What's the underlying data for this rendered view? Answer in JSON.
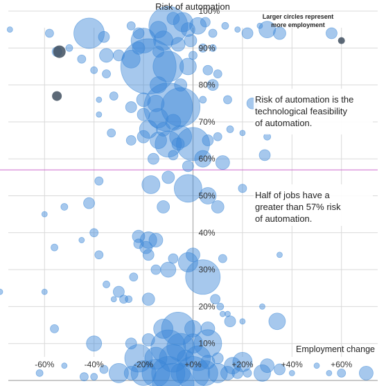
{
  "chart_data": {
    "type": "scatter",
    "title": "Risk of automation",
    "xlabel": "Employment change",
    "ylabel": "",
    "xlim": [
      -78,
      78
    ],
    "ylim": [
      -1.5,
      103
    ],
    "xticks": [
      -60,
      -40,
      -20,
      0,
      20,
      40,
      60
    ],
    "xtick_labels": [
      "-60%",
      "-40%",
      "-20%",
      "+0%",
      "+20%",
      "+40%",
      "+60%"
    ],
    "yticks": [
      10,
      20,
      30,
      40,
      50,
      60,
      70,
      80,
      90,
      100
    ],
    "ytick_labels": [
      "10%",
      "20%",
      "30%",
      "40%",
      "50%",
      "60%",
      "70%",
      "80%",
      "90%",
      "100%"
    ],
    "grid": true,
    "size_legend": {
      "line1": "Larger circles represent",
      "line2": "more employment"
    },
    "annotations": [
      {
        "lines": [
          "Risk of automation is the",
          "technological feasibility",
          "of automation."
        ],
        "color": "#111111"
      },
      {
        "lines": [
          "Half of jobs have a",
          "greater than 57% risk",
          "of automation."
        ],
        "color": "#cc55bb"
      }
    ],
    "reference_line": {
      "y": 57,
      "color": "#cc66cc"
    },
    "colors": {
      "bubble": "#3a86d6",
      "highlight": "#3f4f5f",
      "legend": "#2f7fd6",
      "annotation_text": "#111111",
      "annotation_highlight": "#cc55bb"
    },
    "bubble_alpha": 0.45,
    "highlighted": [
      [
        -54,
        89,
        9
      ],
      [
        -55,
        77,
        7
      ],
      [
        60,
        92,
        5
      ]
    ],
    "points": [
      [
        -74,
        95,
        4
      ],
      [
        -58,
        94,
        6
      ],
      [
        -42,
        94,
        22
      ],
      [
        -36,
        93,
        8
      ],
      [
        -25,
        96,
        6
      ],
      [
        -22,
        94,
        8
      ],
      [
        -14,
        95,
        12
      ],
      [
        -10,
        96,
        28
      ],
      [
        -8,
        98,
        9
      ],
      [
        -4,
        97,
        14
      ],
      [
        -2,
        95,
        10
      ],
      [
        2,
        96,
        12
      ],
      [
        5,
        97,
        7
      ],
      [
        8,
        94,
        6
      ],
      [
        13,
        96,
        5
      ],
      [
        18,
        95,
        4
      ],
      [
        22,
        94,
        8
      ],
      [
        27,
        96,
        4
      ],
      [
        30,
        95,
        12
      ],
      [
        35,
        94,
        9
      ],
      [
        56,
        94,
        8
      ],
      [
        -20,
        92,
        18
      ],
      [
        -12,
        92,
        14
      ],
      [
        -6,
        91,
        10
      ],
      [
        -1,
        92,
        9
      ],
      [
        4,
        90,
        6
      ],
      [
        8,
        90,
        5
      ],
      [
        -30,
        88,
        8
      ],
      [
        -22,
        90,
        9
      ],
      [
        -14,
        89,
        8
      ],
      [
        0,
        88,
        6
      ],
      [
        -55,
        89,
        7
      ],
      [
        -50,
        90,
        5
      ],
      [
        -35,
        88,
        10
      ],
      [
        -25,
        87,
        13
      ],
      [
        -45,
        87,
        6
      ],
      [
        -18,
        85,
        40
      ],
      [
        -10,
        85,
        22
      ],
      [
        -2,
        85,
        12
      ],
      [
        6,
        84,
        7
      ],
      [
        -40,
        84,
        5
      ],
      [
        -35,
        83,
        6
      ],
      [
        10,
        83,
        6
      ],
      [
        -14,
        80,
        12
      ],
      [
        -5,
        80,
        9
      ],
      [
        8,
        80,
        8
      ],
      [
        -38,
        76,
        4
      ],
      [
        -32,
        77,
        6
      ],
      [
        -20,
        76,
        10
      ],
      [
        -15,
        75,
        12
      ],
      [
        -25,
        74,
        8
      ],
      [
        -10,
        74,
        35
      ],
      [
        -5,
        74,
        28
      ],
      [
        4,
        76,
        5
      ],
      [
        14,
        76,
        6
      ],
      [
        24,
        75,
        8
      ],
      [
        -38,
        72,
        4
      ],
      [
        -20,
        72,
        9
      ],
      [
        -14,
        71,
        14
      ],
      [
        -8,
        70,
        11
      ],
      [
        -18,
        68,
        13
      ],
      [
        -12,
        68,
        10
      ],
      [
        -5,
        66,
        16
      ],
      [
        -33,
        67,
        6
      ],
      [
        -25,
        65,
        7
      ],
      [
        -20,
        66,
        9
      ],
      [
        -14,
        65,
        12
      ],
      [
        -10,
        64,
        19
      ],
      [
        -6,
        64,
        9
      ],
      [
        0,
        64,
        24
      ],
      [
        6,
        65,
        8
      ],
      [
        10,
        66,
        6
      ],
      [
        15,
        68,
        5
      ],
      [
        20,
        67,
        4
      ],
      [
        30,
        66,
        5
      ],
      [
        -16,
        60,
        8
      ],
      [
        -8,
        61,
        7
      ],
      [
        4,
        60,
        12
      ],
      [
        12,
        59,
        10
      ],
      [
        -2,
        58,
        8
      ],
      [
        29,
        61,
        8
      ],
      [
        -17,
        53,
        13
      ],
      [
        -38,
        54,
        6
      ],
      [
        -10,
        55,
        9
      ],
      [
        -2,
        52,
        20
      ],
      [
        6,
        50,
        12
      ],
      [
        20,
        52,
        6
      ],
      [
        -42,
        48,
        8
      ],
      [
        -52,
        47,
        5
      ],
      [
        -12,
        47,
        9
      ],
      [
        10,
        47,
        9
      ],
      [
        -60,
        45,
        4
      ],
      [
        -40,
        40,
        6
      ],
      [
        -22,
        39,
        9
      ],
      [
        -18,
        38,
        12
      ],
      [
        -19,
        36,
        9
      ],
      [
        -15,
        38,
        10
      ],
      [
        -22,
        37,
        7
      ],
      [
        -45,
        38,
        4
      ],
      [
        -56,
        36,
        5
      ],
      [
        -18,
        34,
        8
      ],
      [
        -38,
        34,
        6
      ],
      [
        0,
        34,
        10
      ],
      [
        -8,
        33,
        7
      ],
      [
        -2,
        32,
        14
      ],
      [
        -10,
        30,
        11
      ],
      [
        4,
        28,
        25
      ],
      [
        12,
        33,
        6
      ],
      [
        35,
        34,
        4
      ],
      [
        -15,
        30,
        7
      ],
      [
        -24,
        28,
        6
      ],
      [
        -35,
        26,
        5
      ],
      [
        -30,
        24,
        8
      ],
      [
        -28,
        22,
        6
      ],
      [
        -26,
        22,
        5
      ],
      [
        -60,
        24,
        4
      ],
      [
        -78,
        24,
        4
      ],
      [
        -18,
        22,
        9
      ],
      [
        -32,
        22,
        4
      ],
      [
        9,
        22,
        7
      ],
      [
        11,
        20,
        5
      ],
      [
        14,
        18,
        4
      ],
      [
        12,
        18,
        4
      ],
      [
        15,
        16,
        8
      ],
      [
        20,
        16,
        4
      ],
      [
        28,
        20,
        4
      ],
      [
        34,
        16,
        12
      ],
      [
        -56,
        14,
        6
      ],
      [
        -12,
        14,
        14
      ],
      [
        -6,
        14,
        24
      ],
      [
        0,
        14,
        12
      ],
      [
        6,
        14,
        10
      ],
      [
        -40,
        10,
        11
      ],
      [
        -25,
        10,
        8
      ],
      [
        -18,
        11,
        9
      ],
      [
        -10,
        9,
        25
      ],
      [
        -5,
        9,
        20
      ],
      [
        0,
        10,
        14
      ],
      [
        6,
        10,
        20
      ],
      [
        -22,
        6,
        20
      ],
      [
        -15,
        6,
        16
      ],
      [
        -8,
        6,
        20
      ],
      [
        -3,
        6,
        12
      ],
      [
        2,
        6,
        18
      ],
      [
        6,
        5,
        10
      ],
      [
        10,
        6,
        8
      ],
      [
        16,
        4,
        12
      ],
      [
        20,
        5,
        14
      ],
      [
        30,
        4,
        10
      ],
      [
        35,
        3,
        8
      ],
      [
        -52,
        4,
        4
      ],
      [
        -36,
        3,
        6
      ],
      [
        -30,
        2,
        14
      ],
      [
        -25,
        2,
        10
      ],
      [
        -20,
        2,
        18
      ],
      [
        -15,
        2,
        20
      ],
      [
        -10,
        2,
        24
      ],
      [
        -5,
        2,
        14
      ],
      [
        0,
        2,
        24
      ],
      [
        5,
        2,
        18
      ],
      [
        10,
        2,
        14
      ],
      [
        14,
        2,
        10
      ],
      [
        18,
        2,
        8
      ],
      [
        22,
        2,
        6
      ],
      [
        28,
        2,
        12
      ],
      [
        40,
        2,
        4
      ],
      [
        50,
        4,
        4
      ],
      [
        60,
        2,
        6
      ],
      [
        70,
        2,
        10
      ],
      [
        -62,
        2,
        5
      ],
      [
        -44,
        1,
        6
      ],
      [
        -40,
        1,
        5
      ],
      [
        -8,
        -1,
        30
      ],
      [
        55,
        2,
        4
      ]
    ]
  }
}
